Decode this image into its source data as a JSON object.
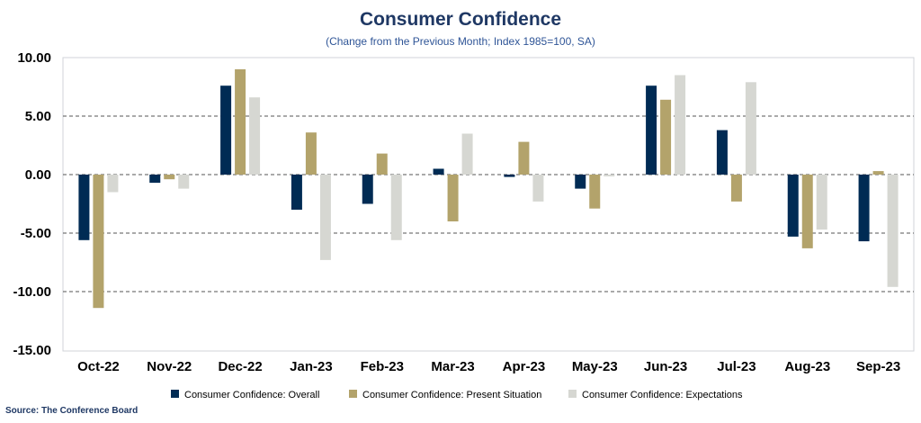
{
  "chart_data": {
    "type": "bar",
    "title": "Consumer Confidence",
    "subtitle": "(Change from the Previous Month; Index 1985=100, SA)",
    "source": "Source: The Conference Board",
    "xlabel": "",
    "ylabel": "",
    "ylim": [
      -15,
      10
    ],
    "yticks": [
      10,
      5,
      0,
      -5,
      -10,
      -15
    ],
    "ytick_labels": [
      "10.00",
      "5.00",
      "0.00",
      "-5.00",
      "-10.00",
      "-15.00"
    ],
    "grid": true,
    "legend_position": "bottom",
    "categories": [
      "Oct-22",
      "Nov-22",
      "Dec-22",
      "Jan-23",
      "Feb-23",
      "Mar-23",
      "Apr-23",
      "May-23",
      "Jun-23",
      "Jul-23",
      "Aug-23",
      "Sep-23"
    ],
    "series": [
      {
        "name": "Consumer Confidence: Overall",
        "color": "#002B54",
        "values": [
          -5.6,
          -0.7,
          7.6,
          -3.0,
          -2.5,
          0.5,
          -0.2,
          -1.2,
          7.6,
          3.8,
          -5.3,
          -5.7
        ]
      },
      {
        "name": "Consumer Confidence: Present Situation",
        "color": "#B3A36B",
        "values": [
          -11.4,
          -0.4,
          9.0,
          3.6,
          1.8,
          -4.0,
          2.8,
          -2.9,
          6.4,
          -2.3,
          -6.3,
          0.3
        ]
      },
      {
        "name": "Consumer Confidence: Expectations",
        "color": "#D6D7D2",
        "values": [
          -1.5,
          -1.2,
          6.6,
          -7.3,
          -5.6,
          3.5,
          -2.3,
          -0.15,
          8.5,
          7.9,
          -4.7,
          -9.6
        ]
      }
    ]
  }
}
